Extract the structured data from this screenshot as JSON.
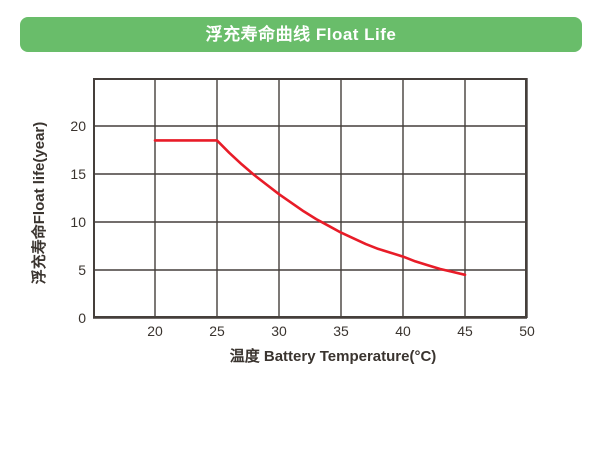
{
  "header": {
    "title": "浮充寿命曲线 Float Life"
  },
  "colors": {
    "header_bg": "#69bd6a",
    "header_text": "#ffffff",
    "grid": "#453f3b",
    "curve": "#e81c28",
    "label_text": "#3a342f",
    "background": "#ffffff"
  },
  "chart_data": {
    "type": "line",
    "title": "浮充寿命曲线 Float Life",
    "xlabel": "温度 Battery Temperature(°C)",
    "ylabel": "浮充寿命Float life(year)",
    "xlim": [
      15,
      50
    ],
    "ylim": [
      0,
      25
    ],
    "x_ticks": [
      20,
      25,
      30,
      35,
      40,
      45,
      50
    ],
    "y_ticks": [
      0,
      5,
      10,
      15,
      20
    ],
    "grid": true,
    "legend_position": "none",
    "series": [
      {
        "name": "Float Life",
        "color": "#e81c28",
        "points": [
          [
            20,
            18.5
          ],
          [
            25,
            18.5
          ],
          [
            26,
            17.2
          ],
          [
            27,
            16.0
          ],
          [
            28,
            14.9
          ],
          [
            29,
            13.9
          ],
          [
            30,
            12.9
          ],
          [
            31,
            12.0
          ],
          [
            32,
            11.1
          ],
          [
            33,
            10.3
          ],
          [
            34,
            9.6
          ],
          [
            35,
            8.9
          ],
          [
            36,
            8.3
          ],
          [
            37,
            7.7
          ],
          [
            38,
            7.2
          ],
          [
            39,
            6.8
          ],
          [
            40,
            6.4
          ],
          [
            41,
            5.9
          ],
          [
            42,
            5.5
          ],
          [
            43,
            5.1
          ],
          [
            44,
            4.8
          ],
          [
            45,
            4.5
          ]
        ]
      }
    ]
  }
}
